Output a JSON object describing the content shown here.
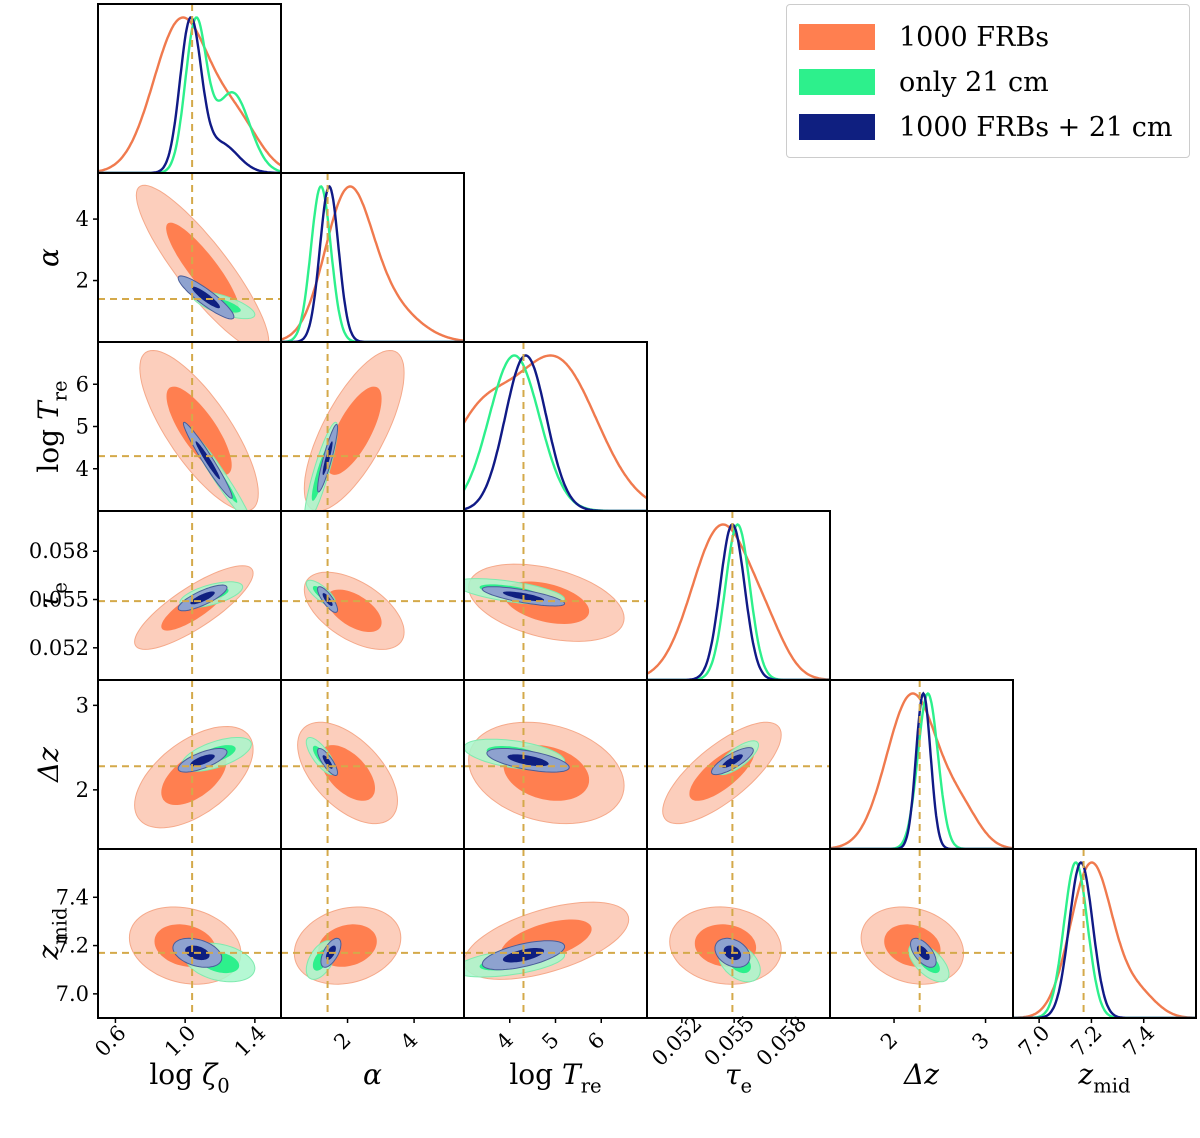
{
  "chart_data": {
    "type": "corner",
    "title": "",
    "legend_position": "top-right",
    "series": [
      {
        "name": "1000 FRBs",
        "color_fill": "#ff7f50",
        "color_line": "#f07a4e",
        "color_light": "#fcc9b5"
      },
      {
        "name": "only 21 cm",
        "color_fill": "#2df08c",
        "color_line": "#2df08c",
        "color_light": "#a8f7cc"
      },
      {
        "name": "1000 FRBs + 21 cm",
        "color_fill": "#0f1f80",
        "color_line": "#101a86",
        "color_light": "#8ea2cf"
      }
    ],
    "truth_color": "#d4a94a",
    "parameters": [
      {
        "id": "logzeta0",
        "label": "log ζ0",
        "range": [
          0.5,
          1.55
        ],
        "ticks": [
          0.6,
          1.0,
          1.4
        ],
        "tick_labels": [
          "0.6",
          "1.0",
          "1.4"
        ],
        "truth": 1.04
      },
      {
        "id": "alpha",
        "label": "α",
        "range": [
          0,
          5.5
        ],
        "ticks": [
          2,
          4
        ],
        "tick_labels": [
          "2",
          "4"
        ],
        "truth": 1.4
      },
      {
        "id": "logTre",
        "label": "log T_re",
        "range": [
          3.0,
          7.0
        ],
        "ticks": [
          4,
          5,
          6
        ],
        "tick_labels": [
          "4",
          "5",
          "6"
        ],
        "truth": 4.3
      },
      {
        "id": "tau_e",
        "label": "τ_e",
        "range": [
          0.05,
          0.0605
        ],
        "ticks": [
          0.052,
          0.055,
          0.058
        ],
        "tick_labels": [
          "0.052",
          "0.055",
          "0.058"
        ],
        "truth": 0.0549
      },
      {
        "id": "dz",
        "label": "Δz",
        "range": [
          1.3,
          3.3
        ],
        "ticks": [
          2,
          3
        ],
        "tick_labels": [
          "2",
          "3"
        ],
        "truth": 2.28
      },
      {
        "id": "zmid",
        "label": "z_mid",
        "range": [
          6.9,
          7.6
        ],
        "ticks": [
          7.0,
          7.2,
          7.4
        ],
        "tick_labels": [
          "7.0",
          "7.2",
          "7.4"
        ],
        "truth": 7.17
      }
    ],
    "marginals": {
      "logzeta0": [
        {
          "mean": 0.98,
          "sd": 0.16,
          "mix": [
            1.3,
            0.13,
            0.3
          ]
        },
        {
          "mean": 1.06,
          "sd": 0.06,
          "mix": [
            1.27,
            0.1,
            0.55
          ]
        },
        {
          "mean": 1.03,
          "sd": 0.06,
          "mix": [
            1.2,
            0.1,
            0.2
          ]
        }
      ],
      "alpha": [
        {
          "mean": 2.0,
          "sd": 0.7,
          "mix": [
            3.2,
            0.9,
            0.25
          ]
        },
        {
          "mean": 1.2,
          "sd": 0.3,
          "mix": null
        },
        {
          "mean": 1.45,
          "sd": 0.28,
          "mix": null
        }
      ],
      "logTre": [
        {
          "mean": 5.0,
          "sd": 0.9,
          "mix": [
            3.3,
            0.7,
            0.55
          ]
        },
        {
          "mean": 4.1,
          "sd": 0.55,
          "mix": null
        },
        {
          "mean": 4.35,
          "sd": 0.45,
          "mix": null
        }
      ],
      "tau_e": [
        {
          "mean": 0.0543,
          "sd": 0.0017,
          "mix": [
            0.057,
            0.0011,
            0.18
          ]
        },
        {
          "mean": 0.0552,
          "sd": 0.0007,
          "mix": null
        },
        {
          "mean": 0.0549,
          "sd": 0.0007,
          "mix": null
        }
      ],
      "dz": [
        {
          "mean": 2.2,
          "sd": 0.28,
          "mix": [
            2.75,
            0.2,
            0.2
          ]
        },
        {
          "mean": 2.37,
          "sd": 0.11,
          "mix": null
        },
        {
          "mean": 2.32,
          "sd": 0.08,
          "mix": null
        }
      ],
      "zmid": [
        {
          "mean": 7.2,
          "sd": 0.08,
          "mix": [
            7.38,
            0.07,
            0.15
          ]
        },
        {
          "mean": 7.14,
          "sd": 0.045,
          "mix": null
        },
        {
          "mean": 7.16,
          "sd": 0.045,
          "mix": null
        }
      ]
    },
    "contours_2d": {
      "alpha|logzeta0": [
        {
          "cx": 1.1,
          "cy": 2.4,
          "sx": 0.19,
          "sy": 1.35,
          "rho": -0.88
        },
        {
          "cx": 1.22,
          "cy": 1.2,
          "sx": 0.09,
          "sy": 0.22,
          "rho": -0.7
        },
        {
          "cx": 1.12,
          "cy": 1.45,
          "sx": 0.08,
          "sy": 0.35,
          "rho": -0.9
        }
      ],
      "logTre|logzeta0": [
        {
          "cx": 1.08,
          "cy": 4.9,
          "sx": 0.17,
          "sy": 0.95,
          "rho": -0.78
        },
        {
          "cx": 1.2,
          "cy": 3.8,
          "sx": 0.09,
          "sy": 0.55,
          "rho": -0.97
        },
        {
          "cx": 1.13,
          "cy": 4.2,
          "sx": 0.07,
          "sy": 0.45,
          "rho": -0.97
        }
      ],
      "logTre|alpha": [
        {
          "cx": 2.2,
          "cy": 4.9,
          "sx": 0.75,
          "sy": 0.95,
          "rho": 0.72
        },
        {
          "cx": 1.2,
          "cy": 3.9,
          "sx": 0.25,
          "sy": 0.6,
          "rho": 0.88
        },
        {
          "cx": 1.4,
          "cy": 4.25,
          "sx": 0.15,
          "sy": 0.4,
          "rho": 0.9
        }
      ],
      "tau_e|logzeta0": [
        {
          "cx": 1.05,
          "cy": 0.0545,
          "sx": 0.17,
          "sy": 0.0013,
          "rho": 0.82
        },
        {
          "cx": 1.15,
          "cy": 0.0553,
          "sx": 0.09,
          "sy": 0.0004,
          "rho": 0.6
        },
        {
          "cx": 1.1,
          "cy": 0.0551,
          "sx": 0.07,
          "sy": 0.0004,
          "rho": 0.8
        }
      ],
      "tau_e|alpha": [
        {
          "cx": 2.2,
          "cy": 0.0543,
          "sx": 0.75,
          "sy": 0.0012,
          "rho": -0.55
        },
        {
          "cx": 1.2,
          "cy": 0.0554,
          "sx": 0.22,
          "sy": 0.0004,
          "rho": -0.75
        },
        {
          "cx": 1.4,
          "cy": 0.055,
          "sx": 0.15,
          "sy": 0.0004,
          "rho": -0.8
        }
      ],
      "tau_e|logTre": [
        {
          "cx": 4.8,
          "cy": 0.0548,
          "sx": 0.85,
          "sy": 0.0012,
          "rho": -0.4
        },
        {
          "cx": 4.0,
          "cy": 0.0555,
          "sx": 0.6,
          "sy": 0.0004,
          "rho": -0.6
        },
        {
          "cx": 4.3,
          "cy": 0.0552,
          "sx": 0.45,
          "sy": 0.0003,
          "rho": -0.75
        }
      ],
      "dz|logzeta0": [
        {
          "cx": 1.05,
          "cy": 2.15,
          "sx": 0.17,
          "sy": 0.3,
          "rho": 0.55
        },
        {
          "cx": 1.18,
          "cy": 2.42,
          "sx": 0.1,
          "sy": 0.1,
          "rho": 0.6
        },
        {
          "cx": 1.1,
          "cy": 2.35,
          "sx": 0.07,
          "sy": 0.07,
          "rho": 0.7
        }
      ],
      "dz|alpha": [
        {
          "cx": 2.0,
          "cy": 2.2,
          "sx": 0.75,
          "sy": 0.3,
          "rho": -0.55
        },
        {
          "cx": 1.2,
          "cy": 2.4,
          "sx": 0.22,
          "sy": 0.11,
          "rho": -0.75
        },
        {
          "cx": 1.4,
          "cy": 2.33,
          "sx": 0.15,
          "sy": 0.08,
          "rho": -0.8
        }
      ],
      "dz|logTre": [
        {
          "cx": 4.8,
          "cy": 2.2,
          "sx": 0.85,
          "sy": 0.3,
          "rho": -0.25
        },
        {
          "cx": 4.1,
          "cy": 2.42,
          "sx": 0.55,
          "sy": 0.09,
          "rho": -0.45
        },
        {
          "cx": 4.4,
          "cy": 2.35,
          "sx": 0.45,
          "sy": 0.07,
          "rho": -0.6
        }
      ],
      "dz|tau_e": [
        {
          "cx": 0.0543,
          "cy": 2.2,
          "sx": 0.0017,
          "sy": 0.3,
          "rho": 0.75
        },
        {
          "cx": 0.0552,
          "cy": 2.38,
          "sx": 0.0006,
          "sy": 0.1,
          "rho": 0.75
        },
        {
          "cx": 0.0549,
          "cy": 2.34,
          "sx": 0.0006,
          "sy": 0.08,
          "rho": 0.8
        }
      ],
      "zmid|logzeta0": [
        {
          "cx": 1.0,
          "cy": 7.2,
          "sx": 0.16,
          "sy": 0.08,
          "rho": -0.2
        },
        {
          "cx": 1.2,
          "cy": 7.13,
          "sx": 0.1,
          "sy": 0.04,
          "rho": -0.3
        },
        {
          "cx": 1.07,
          "cy": 7.17,
          "sx": 0.07,
          "sy": 0.03,
          "rho": -0.35
        }
      ],
      "zmid|alpha": [
        {
          "cx": 2.0,
          "cy": 7.2,
          "sx": 0.8,
          "sy": 0.08,
          "rho": 0.2
        },
        {
          "cx": 1.2,
          "cy": 7.14,
          "sx": 0.22,
          "sy": 0.04,
          "rho": 0.5
        },
        {
          "cx": 1.5,
          "cy": 7.17,
          "sx": 0.15,
          "sy": 0.03,
          "rho": 0.6
        }
      ],
      "zmid|logTre": [
        {
          "cx": 4.8,
          "cy": 7.22,
          "sx": 0.9,
          "sy": 0.08,
          "rho": 0.55
        },
        {
          "cx": 4.0,
          "cy": 7.13,
          "sx": 0.6,
          "sy": 0.03,
          "rho": 0.5
        },
        {
          "cx": 4.3,
          "cy": 7.16,
          "sx": 0.45,
          "sy": 0.03,
          "rho": 0.6
        }
      ],
      "zmid|tau_e": [
        {
          "cx": 0.0545,
          "cy": 7.2,
          "sx": 0.0016,
          "sy": 0.08,
          "rho": -0.1
        },
        {
          "cx": 0.0553,
          "cy": 7.13,
          "sx": 0.0006,
          "sy": 0.04,
          "rho": -0.4
        },
        {
          "cx": 0.0549,
          "cy": 7.17,
          "sx": 0.0005,
          "sy": 0.03,
          "rho": -0.3
        }
      ],
      "zmid|dz": [
        {
          "cx": 2.2,
          "cy": 7.2,
          "sx": 0.28,
          "sy": 0.08,
          "rho": -0.2
        },
        {
          "cx": 2.38,
          "cy": 7.13,
          "sx": 0.11,
          "sy": 0.04,
          "rho": -0.6
        },
        {
          "cx": 2.32,
          "cy": 7.17,
          "sx": 0.07,
          "sy": 0.03,
          "rho": -0.6
        }
      ]
    }
  }
}
